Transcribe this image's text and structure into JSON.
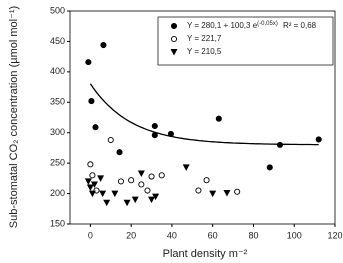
{
  "chart_data": {
    "type": "scatter",
    "xlabel": "Plant density m⁻²",
    "ylabel": "Sub-stomatal CO₂ concentration (µmol mol⁻¹)",
    "xlim": [
      -10,
      120
    ],
    "xticks": [
      0,
      20,
      40,
      60,
      80,
      100,
      120
    ],
    "ylim": [
      150,
      500
    ],
    "yticks": [
      150,
      200,
      250,
      300,
      350,
      400,
      450,
      500
    ],
    "fit": {
      "a": 280.1,
      "b": 100.3,
      "k": -0.05
    },
    "fit_exponent_label": "(-0,05x)",
    "r2_label": "R² = 0,68",
    "series": [
      {
        "name": "Y = 280,1 + 100,3 e",
        "marker": "filled-circle",
        "color": "#000000",
        "x": [
          -1,
          6.4,
          0.5,
          2.5,
          14.3,
          31.6,
          31.6,
          39.5,
          63,
          88,
          93,
          112
        ],
        "y": [
          416,
          444,
          352,
          309,
          268,
          311,
          296,
          298,
          323,
          243,
          280,
          289
        ]
      },
      {
        "name": "Y = 221,7",
        "marker": "open-circle",
        "color": "#000000",
        "x": [
          0,
          1,
          3,
          10,
          15,
          20,
          25,
          28,
          30,
          35,
          53,
          57,
          72
        ],
        "y": [
          248,
          230,
          205,
          288,
          220,
          222,
          215,
          205,
          228,
          230,
          205,
          222,
          203
        ]
      },
      {
        "name": "Y = 210,5",
        "marker": "triangle",
        "color": "#000000",
        "x": [
          -1,
          0,
          1,
          2,
          5,
          6,
          8,
          12,
          18,
          22,
          25,
          30,
          32,
          47,
          60,
          67
        ],
        "y": [
          220,
          210,
          200,
          215,
          225,
          200,
          185,
          200,
          185,
          190,
          233,
          190,
          195,
          243,
          200,
          201
        ]
      }
    ]
  }
}
